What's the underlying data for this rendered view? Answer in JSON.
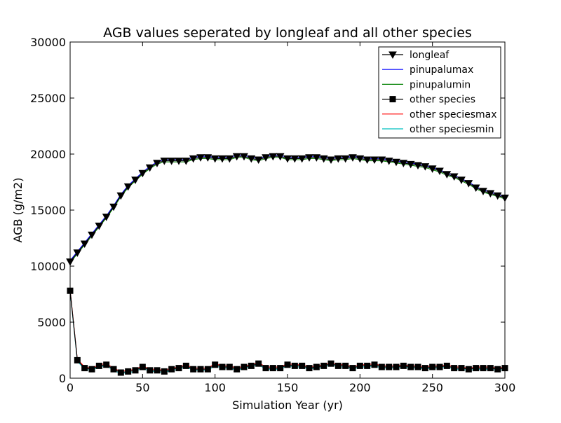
{
  "chart_data": {
    "type": "line",
    "title": "AGB values seperated by longleaf and all other species",
    "xlabel": "Simulation Year (yr)",
    "ylabel": "AGB (g/m2)",
    "xlim": [
      0,
      300
    ],
    "ylim": [
      0,
      30000
    ],
    "xticks": [
      0,
      50,
      100,
      150,
      200,
      250,
      300
    ],
    "yticks": [
      0,
      5000,
      10000,
      15000,
      20000,
      25000,
      30000
    ],
    "grid": false,
    "legend_position": "top-right",
    "x": [
      0,
      5,
      10,
      15,
      20,
      25,
      30,
      35,
      40,
      45,
      50,
      55,
      60,
      65,
      70,
      75,
      80,
      85,
      90,
      95,
      100,
      105,
      110,
      115,
      120,
      125,
      130,
      135,
      140,
      145,
      150,
      155,
      160,
      165,
      170,
      175,
      180,
      185,
      190,
      195,
      200,
      205,
      210,
      215,
      220,
      225,
      230,
      235,
      240,
      245,
      250,
      255,
      260,
      265,
      270,
      275,
      280,
      285,
      290,
      295,
      300
    ],
    "series": [
      {
        "name": "longleaf",
        "color": "#000000",
        "marker": "triangle-down",
        "values": [
          10400,
          11200,
          12000,
          12800,
          13600,
          14400,
          15300,
          16300,
          17100,
          17700,
          18300,
          18800,
          19200,
          19400,
          19400,
          19400,
          19400,
          19600,
          19700,
          19700,
          19600,
          19600,
          19600,
          19800,
          19800,
          19600,
          19500,
          19700,
          19800,
          19800,
          19600,
          19600,
          19600,
          19700,
          19700,
          19600,
          19500,
          19600,
          19600,
          19700,
          19600,
          19500,
          19500,
          19500,
          19400,
          19300,
          19200,
          19100,
          19000,
          18900,
          18700,
          18500,
          18200,
          18000,
          17700,
          17400,
          17000,
          16700,
          16500,
          16300,
          16100
        ]
      },
      {
        "name": "pinupalumax",
        "color": "#0000ff",
        "values": [
          10500,
          11300,
          12100,
          12900,
          13700,
          14500,
          15400,
          16400,
          17200,
          17800,
          18400,
          18900,
          19300,
          19500,
          19500,
          19500,
          19500,
          19700,
          19800,
          19800,
          19700,
          19700,
          19700,
          19900,
          19900,
          19700,
          19600,
          19800,
          19900,
          19900,
          19700,
          19700,
          19700,
          19800,
          19800,
          19700,
          19600,
          19700,
          19700,
          19800,
          19700,
          19600,
          19600,
          19600,
          19500,
          19400,
          19300,
          19200,
          19100,
          19000,
          18800,
          18600,
          18300,
          18100,
          17800,
          17500,
          17100,
          16800,
          16600,
          16400,
          16200
        ]
      },
      {
        "name": "pinupalumin",
        "color": "#008000",
        "values": [
          10300,
          11100,
          11900,
          12700,
          13500,
          14300,
          15200,
          16200,
          17000,
          17600,
          18200,
          18700,
          19100,
          19300,
          19300,
          19300,
          19300,
          19500,
          19600,
          19600,
          19500,
          19500,
          19500,
          19700,
          19700,
          19500,
          19400,
          19600,
          19700,
          19700,
          19500,
          19500,
          19500,
          19600,
          19600,
          19500,
          19400,
          19500,
          19500,
          19600,
          19500,
          19400,
          19400,
          19400,
          19300,
          19200,
          19100,
          19000,
          18900,
          18800,
          18600,
          18400,
          18100,
          17900,
          17600,
          17300,
          16900,
          16600,
          16400,
          16200,
          16000
        ]
      },
      {
        "name": "other species",
        "color": "#000000",
        "marker": "square",
        "values": [
          7800,
          1600,
          900,
          800,
          1100,
          1200,
          800,
          500,
          600,
          700,
          1000,
          700,
          700,
          600,
          800,
          900,
          1100,
          800,
          800,
          800,
          1200,
          1000,
          1000,
          800,
          1000,
          1100,
          1300,
          900,
          900,
          900,
          1200,
          1100,
          1100,
          900,
          1000,
          1100,
          1300,
          1100,
          1100,
          900,
          1100,
          1100,
          1200,
          1000,
          1000,
          1000,
          1100,
          1000,
          1000,
          900,
          1000,
          1000,
          1100,
          900,
          900,
          800,
          900,
          900,
          900,
          800,
          900
        ]
      },
      {
        "name": "other speciesmax",
        "color": "#ff0000",
        "values": [
          7900,
          1700,
          1000,
          900,
          1200,
          1300,
          900,
          600,
          700,
          800,
          1100,
          800,
          800,
          700,
          900,
          1000,
          1200,
          900,
          900,
          900,
          1300,
          1100,
          1100,
          900,
          1100,
          1200,
          1400,
          1000,
          1000,
          1000,
          1300,
          1200,
          1200,
          1000,
          1100,
          1200,
          1400,
          1200,
          1200,
          1000,
          1200,
          1200,
          1300,
          1100,
          1100,
          1100,
          1200,
          1100,
          1100,
          1000,
          1100,
          1100,
          1200,
          1000,
          1000,
          900,
          1000,
          1000,
          1000,
          900,
          1000
        ]
      },
      {
        "name": "other speciesmin",
        "color": "#00bfbf",
        "values": [
          7700,
          1500,
          800,
          700,
          1000,
          1100,
          700,
          400,
          500,
          600,
          900,
          600,
          600,
          500,
          700,
          800,
          1000,
          700,
          700,
          700,
          1100,
          900,
          900,
          700,
          900,
          1000,
          1200,
          800,
          800,
          800,
          1100,
          1000,
          1000,
          800,
          900,
          1000,
          1200,
          1000,
          1000,
          800,
          1000,
          1000,
          1100,
          900,
          900,
          900,
          1000,
          900,
          900,
          800,
          900,
          900,
          1000,
          800,
          800,
          700,
          800,
          800,
          800,
          700,
          800
        ]
      }
    ]
  }
}
